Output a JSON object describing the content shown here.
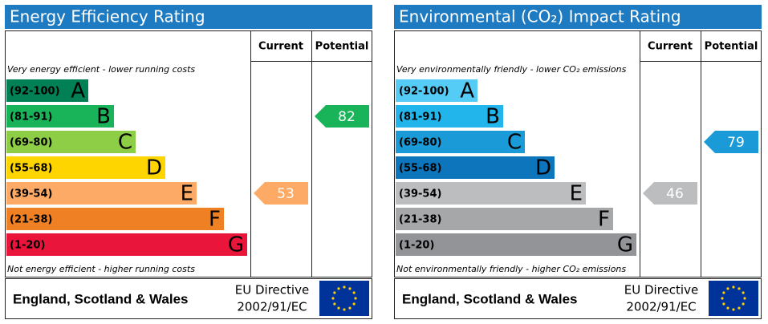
{
  "chart_data": [
    {
      "type": "epc",
      "title": "Energy Efficiency Rating",
      "columns": [
        "Current",
        "Potential"
      ],
      "top_note": "Very energy efficient - lower running costs",
      "bottom_note": "Not energy efficient - higher running costs",
      "bands": [
        {
          "label": "(92-100)",
          "letter": "A",
          "color": "#008054"
        },
        {
          "label": "(81-91)",
          "letter": "B",
          "color": "#19b459"
        },
        {
          "label": "(69-80)",
          "letter": "C",
          "color": "#8dce46"
        },
        {
          "label": "(55-68)",
          "letter": "D",
          "color": "#ffd500"
        },
        {
          "label": "(39-54)",
          "letter": "E",
          "color": "#fcaa65"
        },
        {
          "label": "(21-38)",
          "letter": "F",
          "color": "#ef8023"
        },
        {
          "label": "(1-20)",
          "letter": "G",
          "color": "#e9153b"
        }
      ],
      "current": 53,
      "potential": 82,
      "footer": {
        "region": "England, Scotland & Wales",
        "directive": [
          "EU Directive",
          "2002/91/EC"
        ]
      }
    },
    {
      "type": "epc",
      "title": "Environmental (CO₂) Impact Rating",
      "columns": [
        "Current",
        "Potential"
      ],
      "top_note": "Very environmentally friendly - lower CO₂ emissions",
      "bottom_note": "Not environmentally friendly - higher CO₂ emissions",
      "bands": [
        {
          "label": "(92-100)",
          "letter": "A",
          "color": "#55ccf5"
        },
        {
          "label": "(81-91)",
          "letter": "B",
          "color": "#22b5eb"
        },
        {
          "label": "(69-80)",
          "letter": "C",
          "color": "#1a9ad6"
        },
        {
          "label": "(55-68)",
          "letter": "D",
          "color": "#0c75bc"
        },
        {
          "label": "(39-54)",
          "letter": "E",
          "color": "#bbbdbf"
        },
        {
          "label": "(21-38)",
          "letter": "F",
          "color": "#a5a7a9"
        },
        {
          "label": "(1-20)",
          "letter": "G",
          "color": "#929497"
        }
      ],
      "current": 46,
      "potential": 79,
      "footer": {
        "region": "England, Scotland & Wales",
        "directive": [
          "EU Directive",
          "2002/91/EC"
        ]
      }
    }
  ]
}
